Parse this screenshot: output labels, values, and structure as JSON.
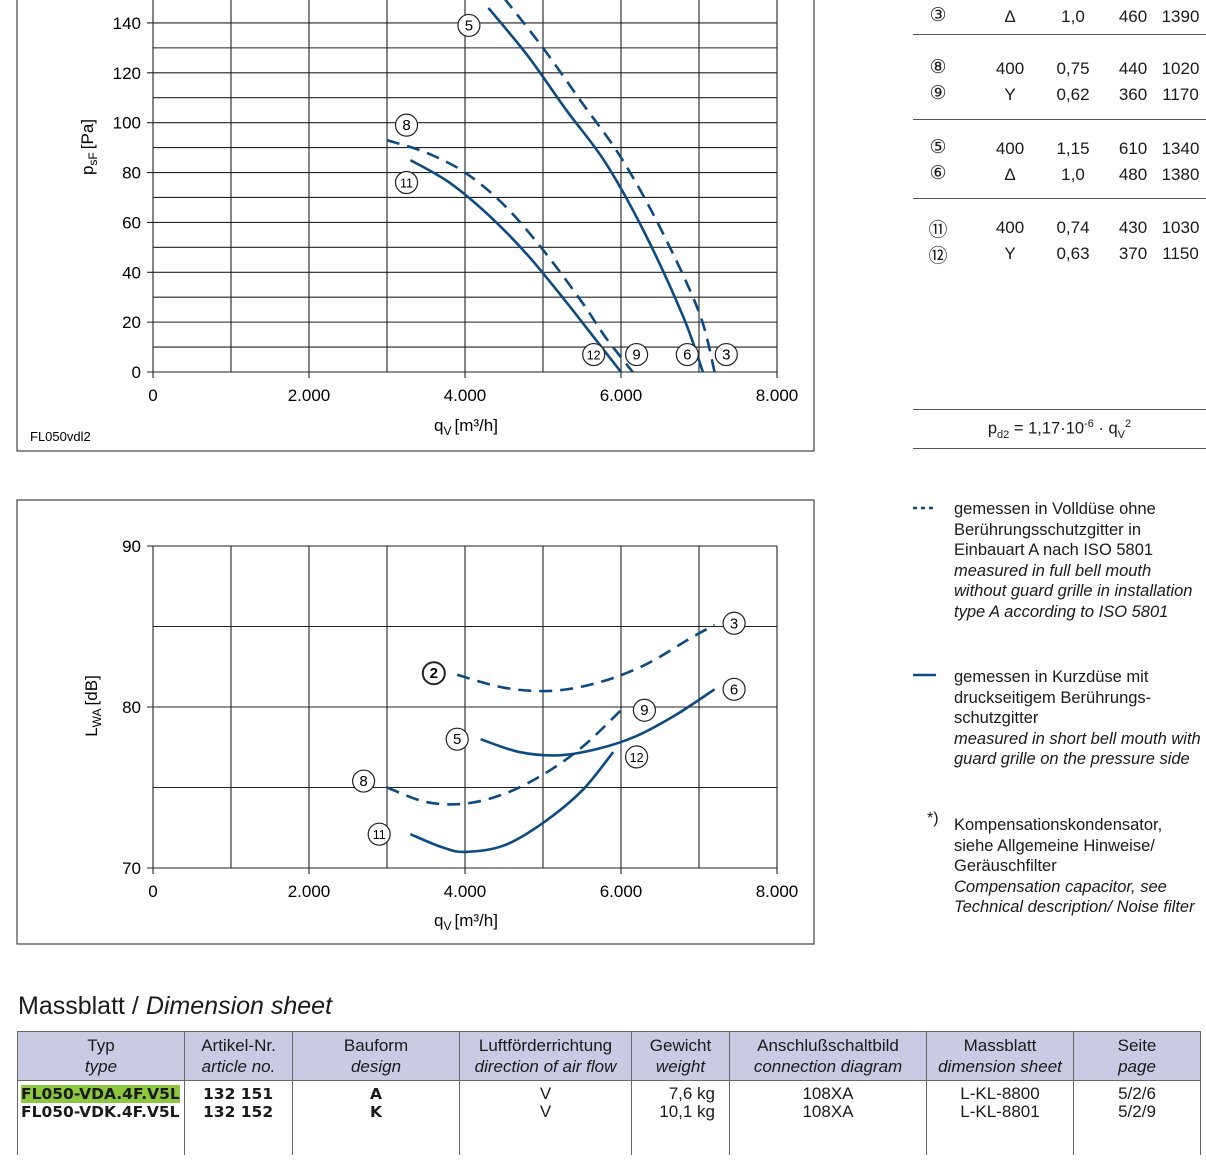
{
  "chart_data": [
    {
      "type": "line",
      "title": "",
      "code": "FL050vdl2",
      "xlabel": "q",
      "xlabel_sub": "V",
      "xlabel_unit": "[m³/h]",
      "ylabel": "p",
      "ylabel_sub": "sF",
      "ylabel_unit": "[Pa]",
      "xlim": [
        0,
        8000
      ],
      "ylim": [
        0,
        150
      ],
      "x_ticks": [
        0,
        2000,
        4000,
        6000,
        8000
      ],
      "x_tick_labels": [
        "0",
        "2.000",
        "4.000",
        "6.000",
        "8.000"
      ],
      "y_ticks": [
        0,
        20,
        40,
        60,
        80,
        100,
        120,
        140
      ],
      "y_tick_labels": [
        "0",
        "20",
        "40",
        "60",
        "80",
        "100",
        "120",
        "140"
      ],
      "series": [
        {
          "name": "3",
          "style": "dashed",
          "x": [
            4500,
            5000,
            5500,
            6000,
            6500,
            7000,
            7200
          ],
          "y": [
            150,
            130,
            108,
            86,
            58,
            24,
            0
          ]
        },
        {
          "name": "5",
          "style": "solid",
          "x": [
            4300,
            4800,
            5300,
            5800,
            6300,
            6800,
            7050
          ],
          "y": [
            146,
            127,
            105,
            84,
            56,
            22,
            0
          ]
        },
        {
          "name": "8",
          "style": "dashed",
          "x": [
            3000,
            3500,
            4000,
            4500,
            5000,
            5500,
            5800,
            6150
          ],
          "y": [
            93,
            88,
            80,
            67,
            49,
            28,
            14,
            0
          ]
        },
        {
          "name": "11",
          "style": "solid",
          "x": [
            3300,
            3800,
            4300,
            4800,
            5300,
            5600,
            6000
          ],
          "y": [
            85,
            76,
            63,
            47,
            28,
            16,
            0
          ]
        }
      ],
      "curve_labels": [
        {
          "name": "5",
          "x": 4050,
          "y": 139
        },
        {
          "name": "8",
          "x": 3250,
          "y": 99
        },
        {
          "name": "11",
          "x": 3250,
          "y": 76
        },
        {
          "name": "12",
          "x": 5650,
          "y": 7
        },
        {
          "name": "9",
          "x": 6200,
          "y": 7
        },
        {
          "name": "6",
          "x": 6850,
          "y": 7
        },
        {
          "name": "3",
          "x": 7350,
          "y": 7
        }
      ]
    },
    {
      "type": "line",
      "title": "",
      "xlabel": "q",
      "xlabel_sub": "V",
      "xlabel_unit": "[m³/h]",
      "ylabel": "L",
      "ylabel_sub": "WA",
      "ylabel_unit": "[dB]",
      "xlim": [
        0,
        8000
      ],
      "ylim": [
        70,
        90
      ],
      "x_ticks": [
        0,
        2000,
        4000,
        6000,
        8000
      ],
      "x_tick_labels": [
        "0",
        "2.000",
        "4.000",
        "6.000",
        "8.000"
      ],
      "y_ticks": [
        70,
        80,
        90
      ],
      "y_tick_labels": [
        "70",
        "80",
        "90"
      ],
      "series": [
        {
          "name": "3",
          "style": "dashed",
          "x": [
            3900,
            4500,
            5100,
            5700,
            6300,
            6900,
            7200
          ],
          "y": [
            82.0,
            81.2,
            81.0,
            81.5,
            82.6,
            84.3,
            85.1
          ]
        },
        {
          "name": "9",
          "style": "dashed",
          "x": [
            3000,
            3500,
            4000,
            4500,
            5000,
            5500,
            6000
          ],
          "y": [
            75.0,
            74.1,
            74.0,
            74.6,
            75.8,
            77.5,
            79.8
          ]
        },
        {
          "name": "6",
          "style": "solid",
          "x": [
            4200,
            4700,
            5200,
            5700,
            6200,
            6700,
            7200
          ],
          "y": [
            78.0,
            77.2,
            77.0,
            77.4,
            78.2,
            79.5,
            81.1
          ]
        },
        {
          "name": "12",
          "style": "solid",
          "x": [
            3300,
            3700,
            4000,
            4500,
            5000,
            5500,
            5900
          ],
          "y": [
            72.1,
            71.3,
            71.0,
            71.4,
            72.8,
            74.8,
            77.2
          ]
        }
      ],
      "curve_labels": [
        {
          "name": "3",
          "x": 7450,
          "y": 85.2,
          "bold": false
        },
        {
          "name": "2",
          "x": 3600,
          "y": 82.1,
          "bold": true
        },
        {
          "name": "9",
          "x": 6300,
          "y": 79.8,
          "bold": false
        },
        {
          "name": "6",
          "x": 7450,
          "y": 81.1,
          "bold": false
        },
        {
          "name": "5",
          "x": 3900,
          "y": 78.0,
          "bold": false
        },
        {
          "name": "12",
          "x": 6200,
          "y": 76.9,
          "bold": false
        },
        {
          "name": "8",
          "x": 2700,
          "y": 75.4,
          "bold": false
        },
        {
          "name": "11",
          "x": 2900,
          "y": 72.1,
          "bold": false
        }
      ]
    }
  ],
  "operating_points": {
    "groups": [
      {
        "rows": [
          {
            "curve": "③",
            "voltage": "Δ",
            "current": "1,0",
            "power": "460",
            "speed": "1390"
          }
        ]
      },
      {
        "rows": [
          {
            "curve": "⑧",
            "voltage": "400",
            "current": "0,75",
            "power": "440",
            "speed": "1020"
          },
          {
            "curve": "⑨",
            "voltage": "Y",
            "current": "0,62",
            "power": "360",
            "speed": "1170"
          }
        ]
      },
      {
        "rows": [
          {
            "curve": "⑤",
            "voltage": "400",
            "current": "1,15",
            "power": "610",
            "speed": "1340"
          },
          {
            "curve": "⑥",
            "voltage": "Δ",
            "current": "1,0",
            "power": "480",
            "speed": "1380"
          }
        ]
      },
      {
        "rows": [
          {
            "curve": "⑪",
            "voltage": "400",
            "current": "0,74",
            "power": "430",
            "speed": "1030"
          },
          {
            "curve": "⑫",
            "voltage": "Y",
            "current": "0,63",
            "power": "370",
            "speed": "1150"
          }
        ]
      }
    ],
    "formula": {
      "lhs": "p",
      "lhs_sub": "d2",
      "eq": " = 1,17·10",
      "exp": "-6",
      "mid": " · q",
      "q_sub": "V",
      "q_exp": "2"
    }
  },
  "legend": {
    "dashed": {
      "de": "gemessen in Volldüse ohne Berührungsschutzgitter in Einbauart A nach ISO 5801",
      "en": "measured in full bell mouth without guard grille in installation type A according to ISO 5801"
    },
    "solid": {
      "de": "gemessen in Kurzdüse mit druckseitigem Berührungs-schutzgitter",
      "en": "measured in short bell mouth with guard grille on the pressure side"
    },
    "note": {
      "mark": "*)",
      "de": "Kompensationskondensator, siehe Allgemeine Hinweise/ Geräuschfilter",
      "en": "Compensation capacitor, see Technical description/ Noise filter"
    }
  },
  "dimension_sheet": {
    "title_de": "Massblatt / ",
    "title_en": "Dimension sheet",
    "headers": [
      {
        "de": "Typ",
        "en": "type"
      },
      {
        "de": "Artikel-Nr.",
        "en": "article no."
      },
      {
        "de": "Bauform",
        "en": "design"
      },
      {
        "de": "Luftförderrichtung",
        "en": "direction of air flow"
      },
      {
        "de": "Gewicht",
        "en": "weight"
      },
      {
        "de": "Anschlußschaltbild",
        "en": "connection diagram"
      },
      {
        "de": "Massblatt",
        "en": "dimension sheet"
      },
      {
        "de": "Seite",
        "en": "page"
      }
    ],
    "rows": [
      {
        "type": "FL050-VDA.4F.V5L",
        "article": "132 151",
        "design": "A",
        "airflow": "V",
        "weight": "7,6 kg",
        "diagram": "108XA",
        "sheet": "L-KL-8800",
        "page": "5/2/6"
      },
      {
        "type": "FL050-VDK.4F.V5L",
        "article": "132 152",
        "design": "K",
        "airflow": "V",
        "weight": "10,1 kg",
        "diagram": "108XA",
        "sheet": "L-KL-8801",
        "page": "5/2/9"
      }
    ]
  },
  "colors": {
    "curve": "#0e4a82",
    "header_bg": "#c8cbe3",
    "highlight": "#8dc63f"
  }
}
